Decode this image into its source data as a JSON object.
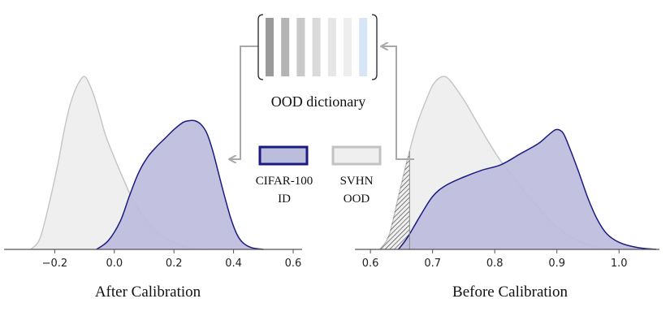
{
  "dictionary": {
    "label": "OOD dictionary",
    "cell_colors": [
      "#9a9a9a",
      "#b4b4b4",
      "#c9c9c9",
      "#dadada",
      "#e6e6e6",
      "#eeeeee",
      "#d6e6f7"
    ]
  },
  "legend": [
    {
      "label_line1": "CIFAR-100",
      "label_line2": "ID",
      "fill": "#bcbcdc",
      "stroke": "#1a1a80"
    },
    {
      "label_line1": "SVHN",
      "label_line2": "OOD",
      "fill": "#efefef",
      "stroke": "#c2c2c2"
    }
  ],
  "colors": {
    "id_fill": "#bdbddd",
    "id_stroke": "#1b1b82",
    "ood_fill": "#efefef",
    "ood_stroke": "#c4c4c4",
    "arrow": "#a9a9a9",
    "axis": "#555555"
  },
  "chart_data": [
    {
      "type": "area",
      "title": "After Calibration",
      "xlim": [
        -0.37,
        0.63
      ],
      "xticks": [
        -0.2,
        0.0,
        0.2,
        0.4,
        0.6
      ],
      "xtick_labels": [
        "−0.2",
        "0.0",
        "0.2",
        "0.4",
        "0.6"
      ],
      "ylim": [
        0,
        1.0
      ],
      "series": [
        {
          "name": "SVHN",
          "role": "OOD",
          "x": [
            -0.28,
            -0.25,
            -0.22,
            -0.19,
            -0.17,
            -0.15,
            -0.13,
            -0.11,
            -0.1,
            -0.09,
            -0.07,
            -0.05,
            -0.03,
            0.0,
            0.03,
            0.06,
            0.1,
            0.15,
            0.2,
            0.25,
            0.3
          ],
          "y": [
            0.0,
            0.06,
            0.25,
            0.48,
            0.66,
            0.81,
            0.91,
            0.97,
            0.98,
            0.96,
            0.88,
            0.77,
            0.65,
            0.52,
            0.4,
            0.29,
            0.18,
            0.09,
            0.04,
            0.01,
            0.0
          ]
        },
        {
          "name": "CIFAR-100",
          "role": "ID",
          "x": [
            -0.06,
            -0.02,
            0.02,
            0.05,
            0.08,
            0.11,
            0.14,
            0.17,
            0.2,
            0.23,
            0.25,
            0.27,
            0.29,
            0.31,
            0.33,
            0.35,
            0.37,
            0.39,
            0.41,
            0.43,
            0.46,
            0.5
          ],
          "y": [
            0.0,
            0.05,
            0.16,
            0.3,
            0.43,
            0.52,
            0.58,
            0.63,
            0.68,
            0.72,
            0.73,
            0.73,
            0.71,
            0.66,
            0.56,
            0.43,
            0.3,
            0.18,
            0.09,
            0.04,
            0.01,
            0.0
          ]
        }
      ]
    },
    {
      "type": "area",
      "title": "Before Calibration",
      "xlim": [
        0.575,
        1.065
      ],
      "xticks": [
        0.6,
        0.7,
        0.8,
        0.9,
        1.0
      ],
      "xtick_labels": [
        "0.6",
        "0.7",
        "0.8",
        "0.9",
        "1.0"
      ],
      "ylim": [
        0,
        1.0
      ],
      "threshold": 0.663,
      "series": [
        {
          "name": "SVHN",
          "role": "OOD",
          "x": [
            0.615,
            0.63,
            0.645,
            0.66,
            0.675,
            0.69,
            0.7,
            0.71,
            0.72,
            0.73,
            0.75,
            0.77,
            0.79,
            0.81,
            0.83,
            0.85,
            0.87,
            0.89,
            0.91,
            0.94,
            0.97,
            1.0
          ],
          "y": [
            0.0,
            0.08,
            0.3,
            0.52,
            0.71,
            0.85,
            0.93,
            0.97,
            0.98,
            0.95,
            0.85,
            0.73,
            0.61,
            0.5,
            0.41,
            0.32,
            0.24,
            0.16,
            0.1,
            0.04,
            0.01,
            0.0
          ]
        },
        {
          "name": "CIFAR-100",
          "role": "ID",
          "x": [
            0.645,
            0.66,
            0.68,
            0.7,
            0.72,
            0.75,
            0.78,
            0.81,
            0.84,
            0.87,
            0.89,
            0.9,
            0.91,
            0.92,
            0.935,
            0.95,
            0.965,
            0.98,
            1.0,
            1.03,
            1.06
          ],
          "y": [
            0.0,
            0.07,
            0.19,
            0.3,
            0.36,
            0.41,
            0.45,
            0.48,
            0.54,
            0.6,
            0.66,
            0.68,
            0.66,
            0.58,
            0.44,
            0.29,
            0.17,
            0.09,
            0.04,
            0.01,
            0.0
          ]
        }
      ]
    }
  ]
}
